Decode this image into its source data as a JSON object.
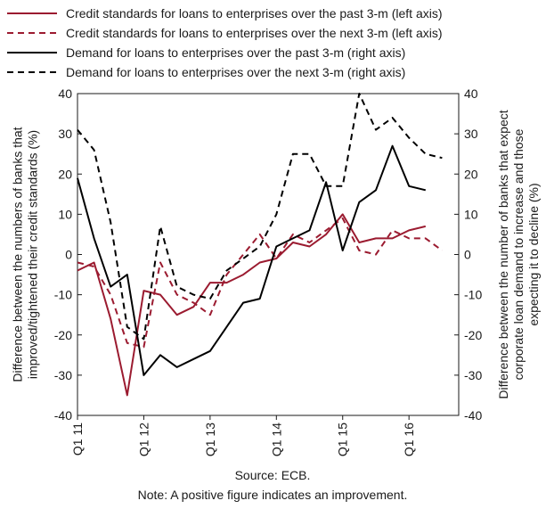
{
  "chart_data": {
    "type": "line",
    "title": "",
    "ylabel_left": "Difference between the numbers of banks that improved/tightened their credit standards (%)",
    "ylabel_right": "Difference between the number of banks that expect corporate loan demand to increase and those expecting it to decline (%)",
    "ylim_left": [
      -40,
      40
    ],
    "ylim_right": [
      -40,
      40
    ],
    "y_ticks": [
      -40,
      -30,
      -20,
      -10,
      0,
      10,
      20,
      30,
      40
    ],
    "x_range": [
      2011.0,
      2016.75
    ],
    "x_ticks": [
      {
        "x": 2011.0,
        "label": "Q1 11"
      },
      {
        "x": 2012.0,
        "label": "Q1 12"
      },
      {
        "x": 2013.0,
        "label": "Q1 13"
      },
      {
        "x": 2014.0,
        "label": "Q1 14"
      },
      {
        "x": 2015.0,
        "label": "Q1 15"
      },
      {
        "x": 2016.0,
        "label": "Q1 16"
      }
    ],
    "grid": false,
    "legend_position": "top",
    "series": [
      {
        "name": "Credit standards for loans to enterprises over the past 3-m (left axis)",
        "axis": "left",
        "color": "#9b1b30",
        "dash": "solid",
        "points": [
          [
            2011.0,
            -4
          ],
          [
            2011.25,
            -2
          ],
          [
            2011.5,
            -16
          ],
          [
            2011.75,
            -35
          ],
          [
            2012.0,
            -9
          ],
          [
            2012.25,
            -10
          ],
          [
            2012.5,
            -15
          ],
          [
            2012.75,
            -13
          ],
          [
            2013.0,
            -7
          ],
          [
            2013.25,
            -7
          ],
          [
            2013.5,
            -5
          ],
          [
            2013.75,
            -2
          ],
          [
            2014.0,
            -1
          ],
          [
            2014.25,
            3
          ],
          [
            2014.5,
            2
          ],
          [
            2014.75,
            5
          ],
          [
            2015.0,
            10
          ],
          [
            2015.25,
            3
          ],
          [
            2015.5,
            4
          ],
          [
            2015.75,
            4
          ],
          [
            2016.0,
            6
          ],
          [
            2016.25,
            7
          ]
        ]
      },
      {
        "name": "Credit standards for loans to enterprises over the next 3-m (left axis)",
        "axis": "left",
        "color": "#9b1b30",
        "dash": "dashed",
        "points": [
          [
            2011.0,
            -2
          ],
          [
            2011.25,
            -3
          ],
          [
            2011.5,
            -10
          ],
          [
            2011.75,
            -22
          ],
          [
            2012.0,
            -23
          ],
          [
            2012.25,
            -2
          ],
          [
            2012.5,
            -10
          ],
          [
            2012.75,
            -12
          ],
          [
            2013.0,
            -15
          ],
          [
            2013.25,
            -5
          ],
          [
            2013.5,
            0
          ],
          [
            2013.75,
            5
          ],
          [
            2014.0,
            -1
          ],
          [
            2014.25,
            5
          ],
          [
            2014.5,
            3
          ],
          [
            2014.75,
            6
          ],
          [
            2015.0,
            9
          ],
          [
            2015.25,
            1
          ],
          [
            2015.5,
            0
          ],
          [
            2015.75,
            6
          ],
          [
            2016.0,
            4
          ],
          [
            2016.25,
            4
          ],
          [
            2016.5,
            1
          ]
        ]
      },
      {
        "name": "Demand for loans to enterprises over the past 3-m (right axis)",
        "axis": "right",
        "color": "#000000",
        "dash": "solid",
        "points": [
          [
            2011.0,
            19
          ],
          [
            2011.25,
            4
          ],
          [
            2011.5,
            -8
          ],
          [
            2011.75,
            -5
          ],
          [
            2012.0,
            -30
          ],
          [
            2012.25,
            -25
          ],
          [
            2012.5,
            -28
          ],
          [
            2012.75,
            -26
          ],
          [
            2013.0,
            -24
          ],
          [
            2013.25,
            -18
          ],
          [
            2013.5,
            -12
          ],
          [
            2013.75,
            -11
          ],
          [
            2014.0,
            2
          ],
          [
            2014.25,
            4
          ],
          [
            2014.5,
            6
          ],
          [
            2014.75,
            18
          ],
          [
            2015.0,
            1
          ],
          [
            2015.25,
            13
          ],
          [
            2015.5,
            16
          ],
          [
            2015.75,
            27
          ],
          [
            2016.0,
            17
          ],
          [
            2016.25,
            16
          ]
        ]
      },
      {
        "name": "Demand for loans to enterprises over the next 3-m (right axis)",
        "axis": "right",
        "color": "#000000",
        "dash": "dashed",
        "points": [
          [
            2011.0,
            31
          ],
          [
            2011.25,
            26
          ],
          [
            2011.5,
            8
          ],
          [
            2011.75,
            -18
          ],
          [
            2012.0,
            -21
          ],
          [
            2012.25,
            7
          ],
          [
            2012.5,
            -8
          ],
          [
            2012.75,
            -10
          ],
          [
            2013.0,
            -11
          ],
          [
            2013.25,
            -4
          ],
          [
            2013.5,
            -1
          ],
          [
            2013.75,
            2
          ],
          [
            2014.0,
            10
          ],
          [
            2014.25,
            25
          ],
          [
            2014.5,
            25
          ],
          [
            2014.75,
            17
          ],
          [
            2015.0,
            17
          ],
          [
            2015.25,
            40
          ],
          [
            2015.5,
            31
          ],
          [
            2015.75,
            34
          ],
          [
            2016.0,
            29
          ],
          [
            2016.25,
            25
          ],
          [
            2016.5,
            24
          ]
        ]
      }
    ]
  },
  "footer": {
    "source": "Source: ECB.",
    "note": "Note: A positive figure indicates an improvement."
  }
}
